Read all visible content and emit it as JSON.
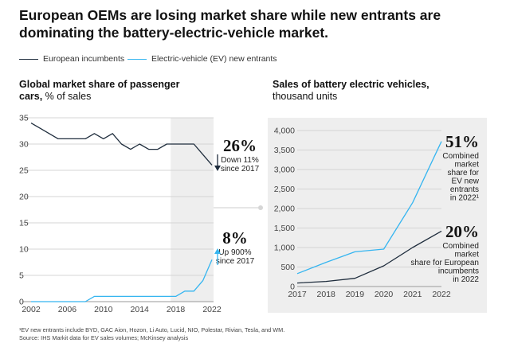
{
  "headline": "European OEMs are losing market share while new entrants are dominating the battery-electric-vehicle market.",
  "legend": [
    {
      "label": "European incumbents",
      "color": "#1f2d3d"
    },
    {
      "label": "Electric-vehicle (EV) new entrants",
      "color": "#35b5f0"
    }
  ],
  "left_chart": {
    "title_bold": "Global market share of passenger cars,",
    "title_rest": " % of sales"
  },
  "right_chart": {
    "title_bold": "Sales of battery electric vehicles,",
    "title_rest": " thousand units"
  },
  "annotations": {
    "incumbent_share": {
      "big": "26%",
      "lines": [
        "Down 11%",
        "since 2017"
      ]
    },
    "ev_share": {
      "big": "8%",
      "lines": [
        "Up 900%",
        "since 2017"
      ]
    },
    "ev_sales": {
      "big": "51%",
      "lines": [
        "Combined",
        "market",
        "share for",
        "EV new",
        "entrants",
        "in 2022¹"
      ]
    },
    "incumbent_sales": {
      "big": "20%",
      "lines": [
        "Combined",
        "market",
        "share for European",
        "incumbents",
        "in 2022"
      ]
    }
  },
  "chart_data": [
    {
      "type": "line",
      "title": "Global market share of passenger cars, % of sales",
      "xlabel": "",
      "ylabel": "% of sales",
      "xlim": [
        2002,
        2022
      ],
      "ylim": [
        0,
        35
      ],
      "xticks": [
        "2002",
        "2006",
        "2010",
        "2014",
        "2018",
        "2022"
      ],
      "yticks": [
        "0",
        "5",
        "10",
        "15",
        "20",
        "25",
        "30",
        "35"
      ],
      "highlight_range": [
        2017,
        2022
      ],
      "series": [
        {
          "name": "European incumbents",
          "x": [
            2002,
            2003,
            2004,
            2005,
            2006,
            2007,
            2008,
            2009,
            2010,
            2011,
            2012,
            2013,
            2014,
            2015,
            2016,
            2017,
            2018,
            2019,
            2020,
            2021,
            2022
          ],
          "values": [
            34,
            33,
            32,
            31,
            31,
            31,
            31,
            32,
            31,
            32,
            30,
            29,
            30,
            29,
            29,
            30,
            30,
            30,
            30,
            28,
            26
          ]
        },
        {
          "name": "Electric-vehicle (EV) new entrants",
          "x": [
            2002,
            2003,
            2004,
            2005,
            2006,
            2007,
            2008,
            2009,
            2010,
            2011,
            2012,
            2013,
            2014,
            2015,
            2016,
            2017,
            2018,
            2019,
            2020,
            2021,
            2022
          ],
          "values": [
            0,
            0,
            0,
            0,
            0,
            0,
            0,
            1,
            1,
            1,
            1,
            1,
            1,
            1,
            1,
            1,
            1,
            2,
            2,
            4,
            8
          ]
        }
      ]
    },
    {
      "type": "line",
      "title": "Sales of battery electric vehicles, thousand units",
      "xlabel": "",
      "ylabel": "thousand units",
      "xlim": [
        2017,
        2022
      ],
      "ylim": [
        0,
        4000
      ],
      "xticks": [
        "2017",
        "2018",
        "2019",
        "2020",
        "2021",
        "2022"
      ],
      "yticks": [
        "0",
        "500",
        "1,000",
        "1,500",
        "2,000",
        "2,500",
        "3,000",
        "3,500",
        "4,000"
      ],
      "series": [
        {
          "name": "Electric-vehicle (EV) new entrants",
          "x": [
            2017,
            2018,
            2019,
            2020,
            2021,
            2022
          ],
          "values": [
            330,
            620,
            890,
            960,
            2150,
            3720
          ]
        },
        {
          "name": "European incumbents",
          "x": [
            2017,
            2018,
            2019,
            2020,
            2021,
            2022
          ],
          "values": [
            90,
            130,
            210,
            530,
            1000,
            1420
          ]
        }
      ]
    }
  ],
  "footnote": [
    "¹EV new entrants include BYD, GAC Aion, Hozon, Li Auto, Lucid, NIO, Polestar, Rivian, Tesla, and WM.",
    "Source: IHS Markit data for EV sales volumes; McKinsey analysis"
  ]
}
